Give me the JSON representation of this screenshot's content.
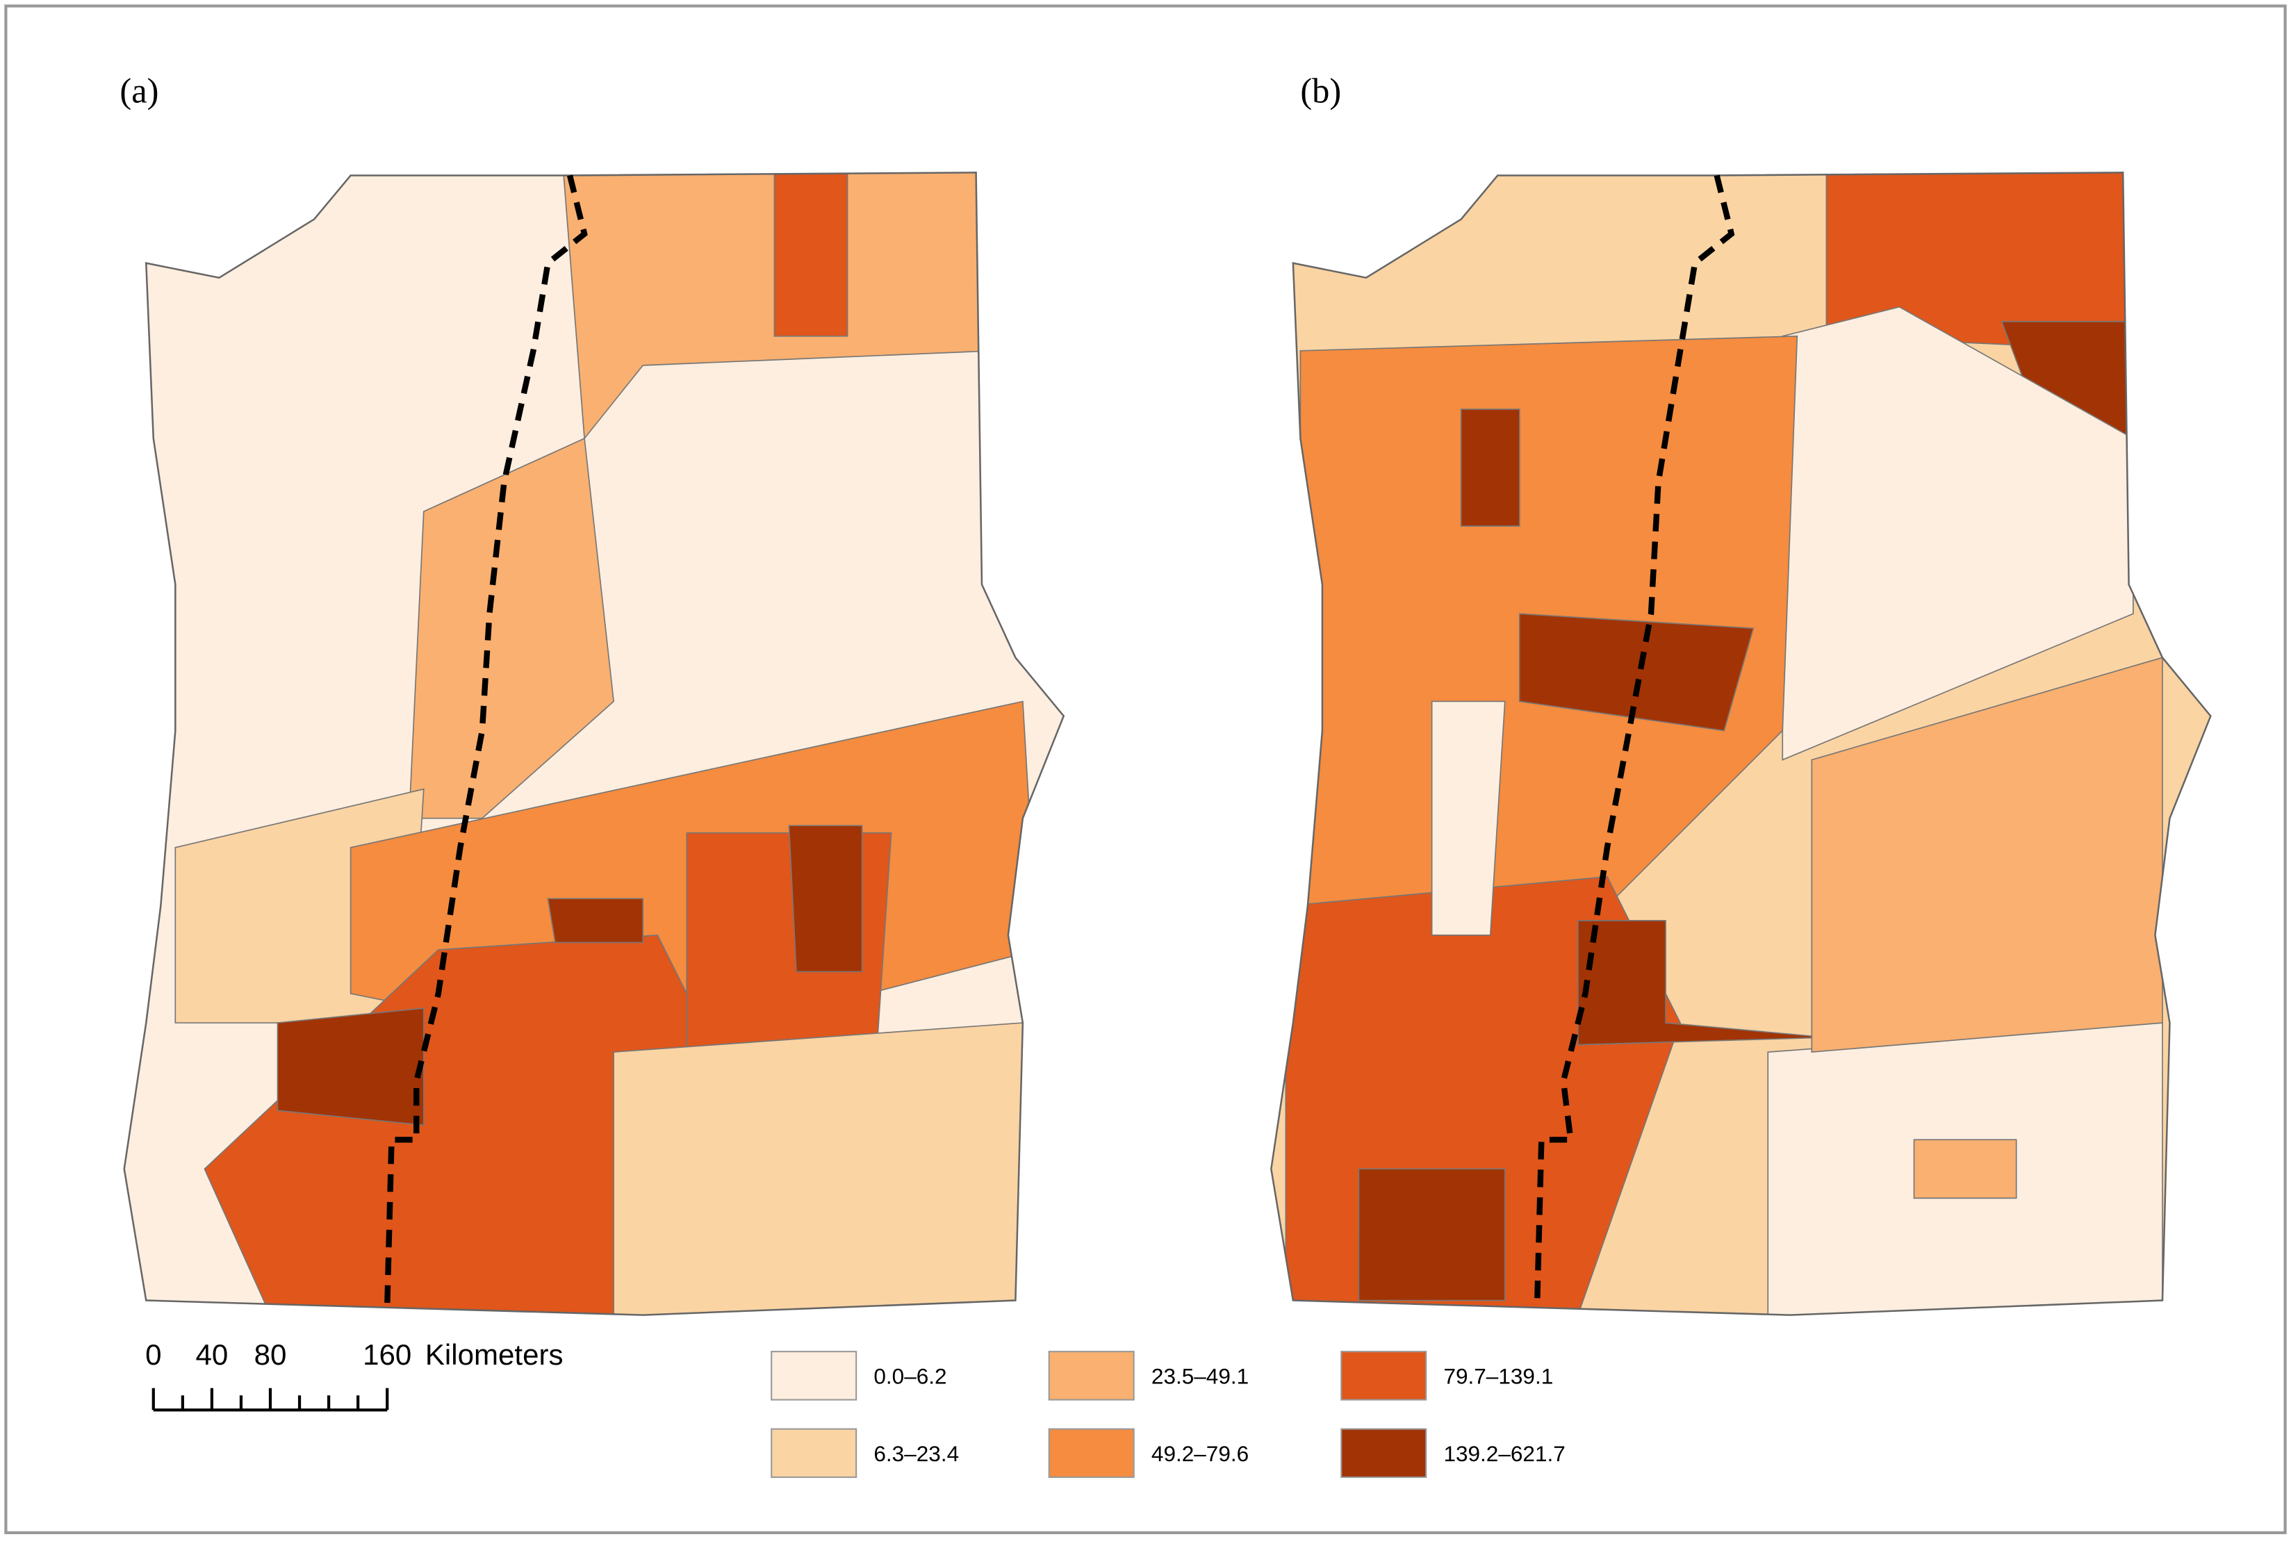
{
  "panels": [
    {
      "label": "(a)"
    },
    {
      "label": "(b)"
    }
  ],
  "legend": [
    {
      "label": "0.0–6.2",
      "color": "#fdeedf"
    },
    {
      "label": "6.3–23.4",
      "color": "#fbd4a3"
    },
    {
      "label": "23.5–49.1",
      "color": "#f9b070"
    },
    {
      "label": "49.2–79.6",
      "color": "#f58c3f"
    },
    {
      "label": "79.7–139.1",
      "color": "#e0561b"
    },
    {
      "label": "139.2–621.7",
      "color": "#a23304"
    }
  ],
  "scale_bar": {
    "ticks": [
      0,
      40,
      80,
      160
    ],
    "unit": "Kilometers"
  }
}
